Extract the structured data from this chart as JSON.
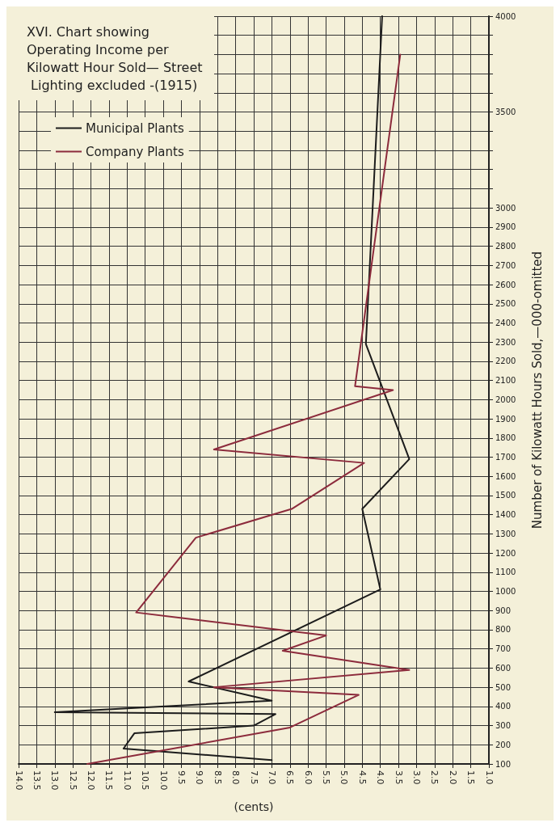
{
  "chart_data": {
    "type": "line",
    "title": "XVI. Chart showing Operating Income per Kilowatt Hour Sold— Street Lighting excluded -(1915)",
    "ylabel": "Number of Kilowatt Hours Sold,—000-omitted",
    "xlabel": "(cents)",
    "ylim": [
      100,
      4000
    ],
    "yticks": [
      100,
      200,
      300,
      400,
      500,
      600,
      700,
      800,
      900,
      1000,
      1100,
      1200,
      1300,
      1400,
      1500,
      1600,
      1700,
      1800,
      1900,
      2000,
      2100,
      2200,
      2300,
      2400,
      2500,
      2600,
      2700,
      2800,
      2900,
      3000,
      {
        "value": 3100,
        "label": null
      },
      {
        "value": 3200,
        "label": null
      },
      {
        "value": 3300,
        "label": null
      },
      {
        "value": 3400,
        "label": null
      },
      3500,
      {
        "value": 3600,
        "label": null
      },
      {
        "value": 3700,
        "label": null
      },
      {
        "value": 3800,
        "label": null
      },
      {
        "value": 3900,
        "label": null
      },
      4000
    ],
    "xlim": [
      14,
      1
    ],
    "xticks": [
      {
        "value": 14,
        "label": "14.0"
      },
      {
        "value": 13.5,
        "label": "13.5"
      },
      {
        "value": 13,
        "label": "13.0"
      },
      {
        "value": 12.5,
        "label": "12.5"
      },
      {
        "value": 12,
        "label": "12.0"
      },
      {
        "value": 11.5,
        "label": "11.5"
      },
      {
        "value": 11,
        "label": "11.0"
      },
      {
        "value": 10.5,
        "label": "10.5"
      },
      {
        "value": 10,
        "label": "10.0"
      },
      {
        "value": 9.5,
        "label": "9.5"
      },
      {
        "value": 9,
        "label": "9.0"
      },
      {
        "value": 8.5,
        "label": "8.5"
      },
      {
        "value": 8,
        "label": "8.0"
      },
      {
        "value": 7.5,
        "label": "7.5"
      },
      {
        "value": 7,
        "label": "7.0"
      },
      {
        "value": 6.5,
        "label": "6.5"
      },
      {
        "value": 6,
        "label": "6.0"
      },
      {
        "value": 5.5,
        "label": "5.5"
      },
      {
        "value": 5,
        "label": "5.0"
      },
      {
        "value": 4.5,
        "label": "4.5"
      },
      {
        "value": 4,
        "label": "4.0"
      },
      {
        "value": 3.5,
        "label": "3.5"
      },
      {
        "value": 3,
        "label": "3.0"
      },
      {
        "value": 2.5,
        "label": "2.5"
      },
      {
        "value": 2,
        "label": "2.0"
      },
      {
        "value": 1.5,
        "label": "1.5"
      },
      {
        "value": 1,
        "label": "1.0"
      }
    ],
    "grid": true,
    "legend": "top left",
    "marker": "none",
    "line_style": "solid",
    "series": [
      {
        "name": "Municipal Plants",
        "color": "#1c1c1c",
        "x": [
          7.0,
          11.1,
          10.8,
          7.5,
          6.9,
          13.0,
          7.0,
          9.3,
          4.0,
          4.5,
          3.2,
          4.4,
          3.95
        ],
        "values": [
          120,
          180,
          260,
          300,
          360,
          370,
          430,
          530,
          1010,
          1430,
          1690,
          2290,
          4000
        ]
      },
      {
        "name": "Company Plants",
        "color": "#8c2b3c",
        "x": [
          12.1,
          6.5,
          4.6,
          8.6,
          3.2,
          6.7,
          5.5,
          10.75,
          9.1,
          6.45,
          4.45,
          8.6,
          3.65,
          4.7,
          3.45
        ],
        "values": [
          100,
          290,
          460,
          500,
          590,
          690,
          770,
          890,
          1280,
          1430,
          1670,
          1740,
          2050,
          2070,
          3800
        ]
      }
    ]
  }
}
